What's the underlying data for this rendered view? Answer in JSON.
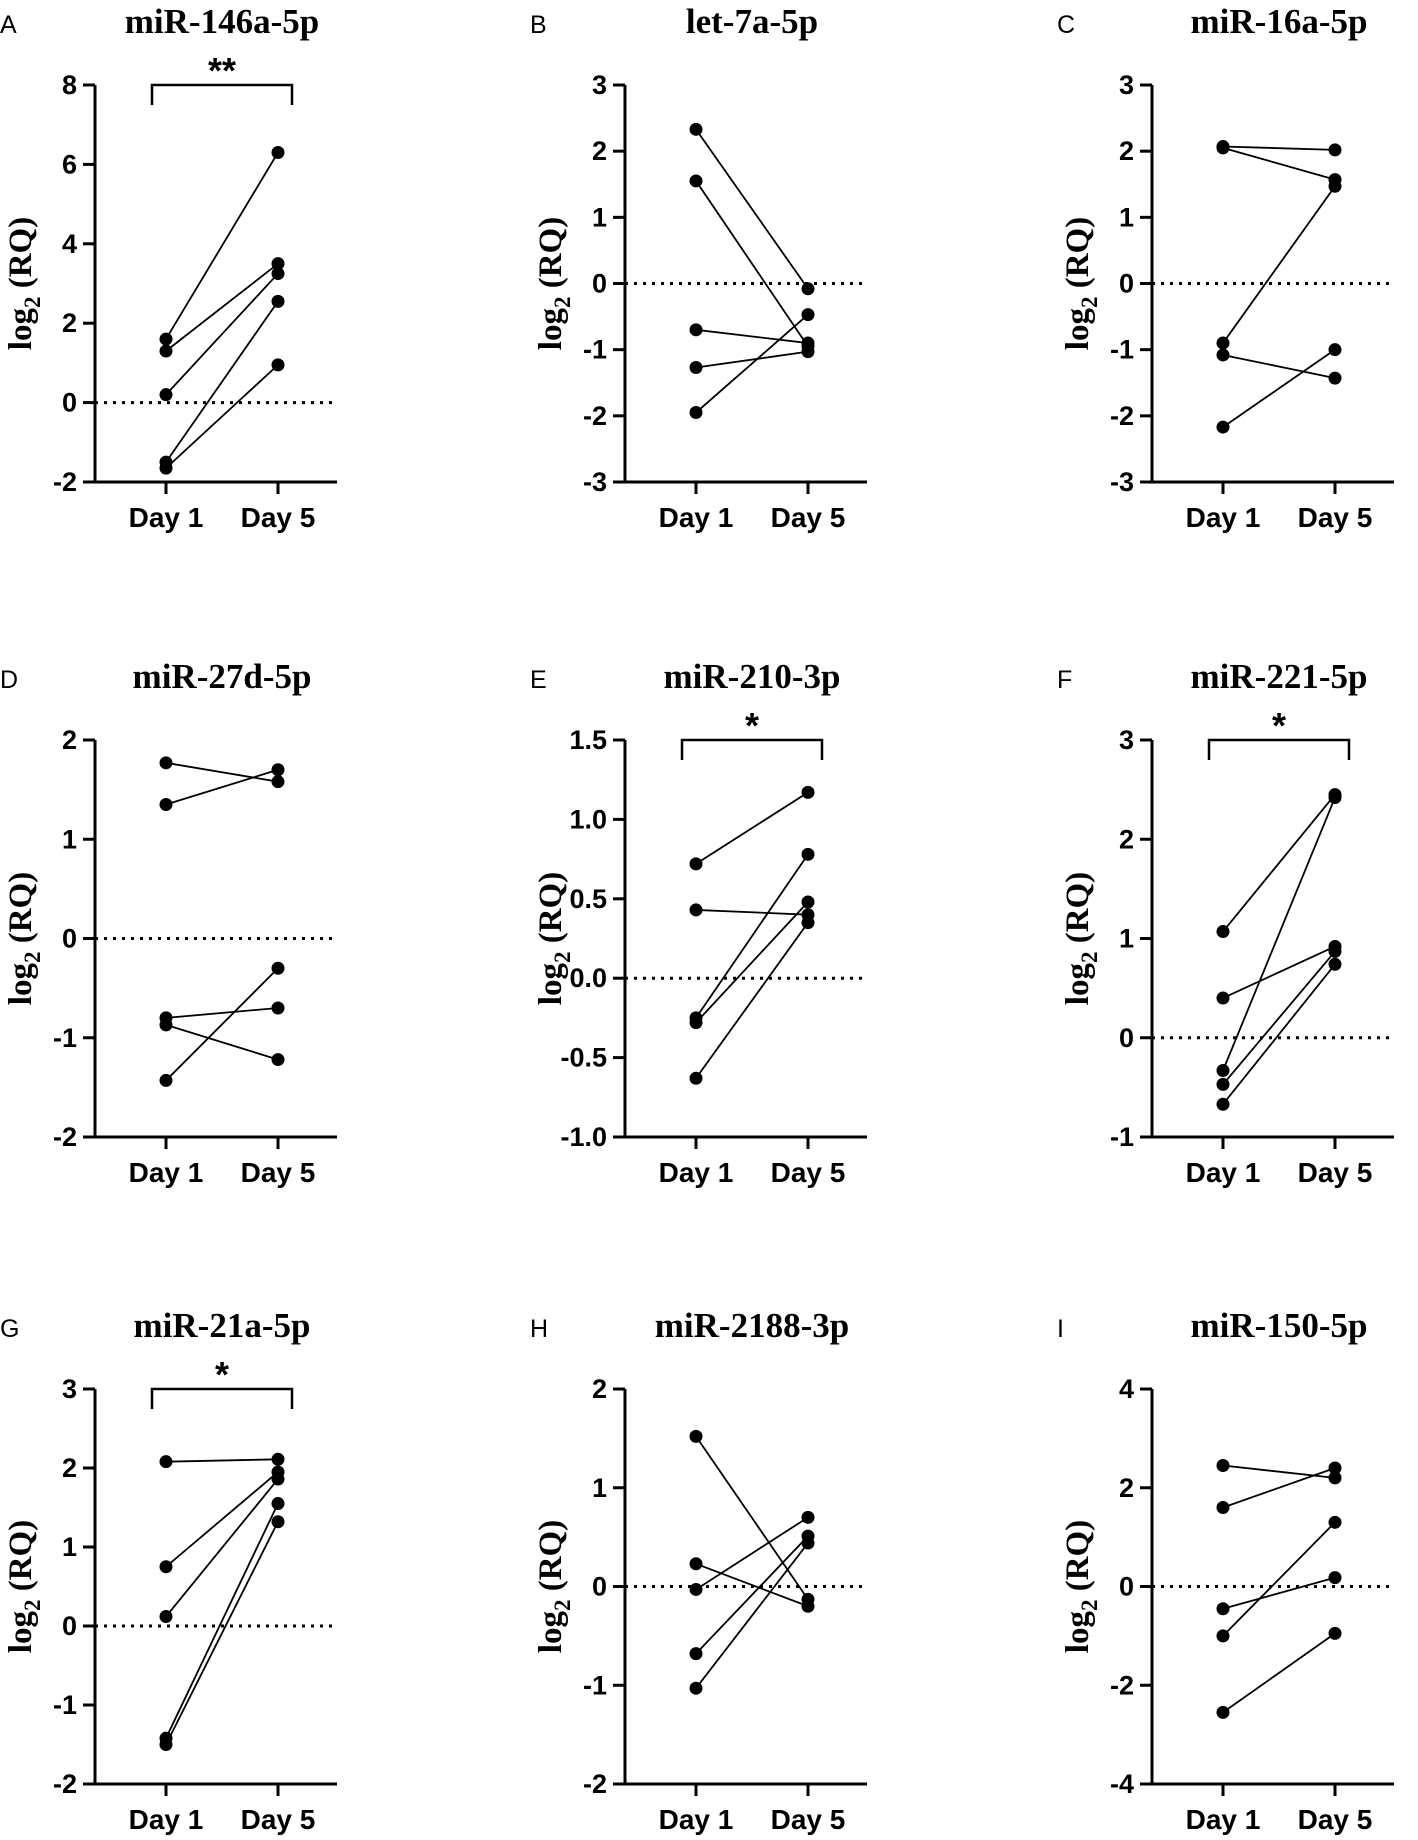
{
  "chart_data": [
    {
      "panel": "A",
      "type": "line",
      "title": "miR-146a-5p",
      "xlabel": "",
      "ylabel": "log2 (RQ)",
      "ylabel_base": "log",
      "ylabel_sub": "2",
      "ylabel_rest": " (RQ)",
      "categories": [
        "Day 1",
        "Day 5"
      ],
      "ylim": [
        -2,
        8
      ],
      "yticks": [
        -2,
        0,
        2,
        4,
        6,
        8
      ],
      "ytick_labels": [
        "-2",
        "0",
        "2",
        "4",
        "6",
        "8"
      ],
      "series": [
        {
          "name": "1",
          "values": [
            1.6,
            6.3
          ]
        },
        {
          "name": "2",
          "values": [
            1.3,
            3.5
          ]
        },
        {
          "name": "3",
          "values": [
            0.2,
            3.25
          ]
        },
        {
          "name": "4",
          "values": [
            -1.5,
            2.55
          ]
        },
        {
          "name": "5",
          "values": [
            -1.65,
            0.95
          ]
        }
      ],
      "significance": "**"
    },
    {
      "panel": "B",
      "type": "line",
      "title": "let-7a-5p",
      "xlabel": "",
      "ylabel": "log2 (RQ)",
      "ylabel_base": "log",
      "ylabel_sub": "2",
      "ylabel_rest": " (RQ)",
      "categories": [
        "Day 1",
        "Day 5"
      ],
      "ylim": [
        -3,
        3
      ],
      "yticks": [
        -3,
        -2,
        -1,
        0,
        1,
        2,
        3
      ],
      "ytick_labels": [
        "-3",
        "-2",
        "-1",
        "0",
        "1",
        "2",
        "3"
      ],
      "series": [
        {
          "name": "1",
          "values": [
            2.33,
            -0.08
          ]
        },
        {
          "name": "2",
          "values": [
            1.55,
            -0.95
          ]
        },
        {
          "name": "3",
          "values": [
            -0.7,
            -0.9
          ]
        },
        {
          "name": "4",
          "values": [
            -1.27,
            -1.03
          ]
        },
        {
          "name": "5",
          "values": [
            -1.95,
            -0.47
          ]
        }
      ],
      "significance": ""
    },
    {
      "panel": "C",
      "type": "line",
      "title": "miR-16a-5p",
      "xlabel": "",
      "ylabel": "log2 (RQ)",
      "ylabel_base": "log",
      "ylabel_sub": "2",
      "ylabel_rest": " (RQ)",
      "categories": [
        "Day 1",
        "Day 5"
      ],
      "ylim": [
        -3,
        3
      ],
      "yticks": [
        -3,
        -2,
        -1,
        0,
        1,
        2,
        3
      ],
      "ytick_labels": [
        "-3",
        "-2",
        "-1",
        "0",
        "1",
        "2",
        "3"
      ],
      "series": [
        {
          "name": "1",
          "values": [
            2.07,
            2.02
          ]
        },
        {
          "name": "2",
          "values": [
            2.05,
            1.57
          ]
        },
        {
          "name": "3",
          "values": [
            -0.9,
            1.47
          ]
        },
        {
          "name": "4",
          "values": [
            -1.08,
            -1.43
          ]
        },
        {
          "name": "5",
          "values": [
            -2.17,
            -1.0
          ]
        }
      ],
      "significance": ""
    },
    {
      "panel": "D",
      "type": "line",
      "title": "miR-27d-5p",
      "xlabel": "",
      "ylabel": "log2 (RQ)",
      "ylabel_base": "log",
      "ylabel_sub": "2",
      "ylabel_rest": " (RQ)",
      "categories": [
        "Day 1",
        "Day 5"
      ],
      "ylim": [
        -2,
        2
      ],
      "yticks": [
        -2,
        -1,
        0,
        1,
        2
      ],
      "ytick_labels": [
        "-2",
        "-1",
        "0",
        "1",
        "2"
      ],
      "series": [
        {
          "name": "1",
          "values": [
            1.77,
            1.58
          ]
        },
        {
          "name": "2",
          "values": [
            1.35,
            1.7
          ]
        },
        {
          "name": "3",
          "values": [
            -0.8,
            -0.7
          ]
        },
        {
          "name": "4",
          "values": [
            -0.87,
            -1.22
          ]
        },
        {
          "name": "5",
          "values": [
            -1.43,
            -0.3
          ]
        }
      ],
      "significance": ""
    },
    {
      "panel": "E",
      "type": "line",
      "title": "miR-210-3p",
      "xlabel": "",
      "ylabel": "log2 (RQ)",
      "ylabel_base": "log",
      "ylabel_sub": "2",
      "ylabel_rest": " (RQ)",
      "categories": [
        "Day 1",
        "Day 5"
      ],
      "ylim": [
        -1.0,
        1.5
      ],
      "yticks": [
        -1.0,
        -0.5,
        0.0,
        0.5,
        1.0,
        1.5
      ],
      "ytick_labels": [
        "-1.0",
        "-0.5",
        "0.0",
        "0.5",
        "1.0",
        "1.5"
      ],
      "series": [
        {
          "name": "1",
          "values": [
            0.72,
            1.17
          ]
        },
        {
          "name": "2",
          "values": [
            0.43,
            0.4
          ]
        },
        {
          "name": "3",
          "values": [
            -0.25,
            0.78
          ]
        },
        {
          "name": "4",
          "values": [
            -0.28,
            0.48
          ]
        },
        {
          "name": "5",
          "values": [
            -0.63,
            0.35
          ]
        }
      ],
      "significance": "*"
    },
    {
      "panel": "F",
      "type": "line",
      "title": "miR-221-5p",
      "xlabel": "",
      "ylabel": "log2 (RQ)",
      "ylabel_base": "log",
      "ylabel_sub": "2",
      "ylabel_rest": " (RQ)",
      "categories": [
        "Day 1",
        "Day 5"
      ],
      "ylim": [
        -1,
        3
      ],
      "yticks": [
        -1,
        0,
        1,
        2,
        3
      ],
      "ytick_labels": [
        "-1",
        "0",
        "1",
        "2",
        "3"
      ],
      "series": [
        {
          "name": "1",
          "values": [
            1.07,
            2.45
          ]
        },
        {
          "name": "2",
          "values": [
            0.4,
            0.92
          ]
        },
        {
          "name": "3",
          "values": [
            -0.33,
            2.42
          ]
        },
        {
          "name": "4",
          "values": [
            -0.47,
            0.87
          ]
        },
        {
          "name": "5",
          "values": [
            -0.67,
            0.74
          ]
        }
      ],
      "significance": "*"
    },
    {
      "panel": "G",
      "type": "line",
      "title": "miR-21a-5p",
      "xlabel": "",
      "ylabel": "log2 (RQ)",
      "ylabel_base": "log",
      "ylabel_sub": "2",
      "ylabel_rest": " (RQ)",
      "categories": [
        "Day 1",
        "Day 5"
      ],
      "ylim": [
        -2,
        3
      ],
      "yticks": [
        -2,
        -1,
        0,
        1,
        2,
        3
      ],
      "ytick_labels": [
        "-2",
        "-1",
        "0",
        "1",
        "2",
        "3"
      ],
      "series": [
        {
          "name": "1",
          "values": [
            2.08,
            2.11
          ]
        },
        {
          "name": "2",
          "values": [
            0.75,
            1.95
          ]
        },
        {
          "name": "3",
          "values": [
            0.12,
            1.86
          ]
        },
        {
          "name": "4",
          "values": [
            -1.42,
            1.55
          ]
        },
        {
          "name": "5",
          "values": [
            -1.5,
            1.32
          ]
        }
      ],
      "significance": "*"
    },
    {
      "panel": "H",
      "type": "line",
      "title": "miR-2188-3p",
      "xlabel": "",
      "ylabel": "log2 (RQ)",
      "ylabel_base": "log",
      "ylabel_sub": "2",
      "ylabel_rest": " (RQ)",
      "categories": [
        "Day 1",
        "Day 5"
      ],
      "ylim": [
        -2,
        2
      ],
      "yticks": [
        -2,
        -1,
        0,
        1,
        2
      ],
      "ytick_labels": [
        "-2",
        "-1",
        "0",
        "1",
        "2"
      ],
      "series": [
        {
          "name": "1",
          "values": [
            1.52,
            -0.13
          ]
        },
        {
          "name": "2",
          "values": [
            0.23,
            -0.2
          ]
        },
        {
          "name": "3",
          "values": [
            -0.03,
            0.7
          ]
        },
        {
          "name": "4",
          "values": [
            -0.68,
            0.51
          ]
        },
        {
          "name": "5",
          "values": [
            -1.03,
            0.44
          ]
        }
      ],
      "significance": ""
    },
    {
      "panel": "I",
      "type": "line",
      "title": "miR-150-5p",
      "xlabel": "",
      "ylabel": "log2 (RQ)",
      "ylabel_base": "log",
      "ylabel_sub": "2",
      "ylabel_rest": " (RQ)",
      "categories": [
        "Day 1",
        "Day 5"
      ],
      "ylim": [
        -4,
        4
      ],
      "yticks": [
        -4,
        -2,
        0,
        2,
        4
      ],
      "ytick_labels": [
        "-4",
        "-2",
        "0",
        "2",
        "4"
      ],
      "series": [
        {
          "name": "1",
          "values": [
            2.45,
            2.2
          ]
        },
        {
          "name": "2",
          "values": [
            1.6,
            2.4
          ]
        },
        {
          "name": "3",
          "values": [
            -0.45,
            0.18
          ]
        },
        {
          "name": "4",
          "values": [
            -1.0,
            1.3
          ]
        },
        {
          "name": "5",
          "values": [
            -2.55,
            -0.95
          ]
        }
      ],
      "significance": ""
    }
  ]
}
